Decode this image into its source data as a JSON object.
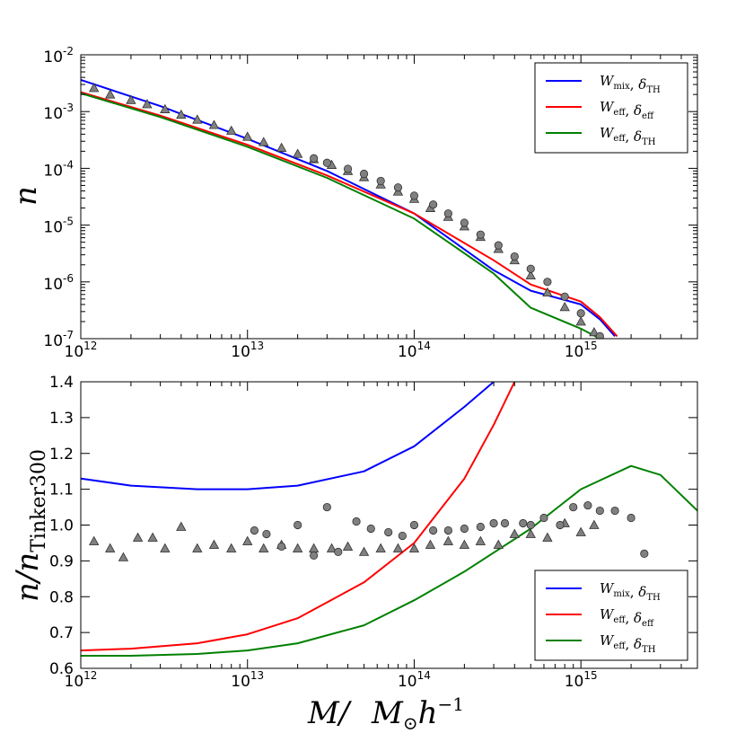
{
  "chart_data": [
    {
      "type": "line",
      "panel": "top",
      "ylabel": "n",
      "xscale": "log",
      "yscale": "log",
      "xlim": [
        1000000000000.0,
        5000000000000000.0
      ],
      "ylim": [
        1e-07,
        0.01
      ],
      "xtick_labels": [
        {
          "base": "10",
          "exp": "12"
        },
        {
          "base": "10",
          "exp": "13"
        },
        {
          "base": "10",
          "exp": "14"
        },
        {
          "base": "10",
          "exp": "15"
        }
      ],
      "ytick_labels": [
        {
          "base": "10",
          "exp": "-7"
        },
        {
          "base": "10",
          "exp": "-6"
        },
        {
          "base": "10",
          "exp": "-5"
        },
        {
          "base": "10",
          "exp": "-4"
        },
        {
          "base": "10",
          "exp": "-3"
        },
        {
          "base": "10",
          "exp": "-2"
        }
      ],
      "legend_position": "top-right",
      "series": [
        {
          "name": "W_mix, δ_TH",
          "color": "#0000ff",
          "x": [
            1000000000000.0,
            3000000000000.0,
            10000000000000.0,
            30000000000000.0,
            100000000000000.0,
            300000000000000.0,
            500000000000000.0,
            1000000000000000.0,
            1300000000000000.0,
            1600000000000000.0
          ],
          "y": [
            0.0036,
            0.00125,
            0.00033,
            9e-05,
            1.6e-05,
            1.6e-06,
            7e-07,
            4e-07,
            2.2e-07,
            1.1e-07
          ]
        },
        {
          "name": "W_eff, δ_eff",
          "color": "#ff0000",
          "x": [
            1000000000000.0,
            3000000000000.0,
            10000000000000.0,
            30000000000000.0,
            100000000000000.0,
            300000000000000.0,
            500000000000000.0,
            1000000000000000.0,
            1300000000000000.0,
            1650000000000000.0
          ],
          "y": [
            0.0022,
            0.00085,
            0.00026,
            7.5e-05,
            1.6e-05,
            2.4e-06,
            9e-07,
            4.5e-07,
            2.4e-07,
            1.1e-07
          ]
        },
        {
          "name": "W_eff, δ_TH",
          "color": "#008000",
          "x": [
            1000000000000.0,
            3000000000000.0,
            10000000000000.0,
            30000000000000.0,
            100000000000000.0,
            300000000000000.0,
            500000000000000.0,
            1000000000000000.0,
            1300000000000000.0
          ],
          "y": [
            0.0021,
            0.0008,
            0.00024,
            6.8e-05,
            1.3e-05,
            1.4e-06,
            3.5e-07,
            1.5e-07,
            1e-07
          ]
        }
      ],
      "markers_triangles": {
        "x": [
          1200000000000.0,
          1500000000000.0,
          2000000000000.0,
          2500000000000.0,
          3200000000000.0,
          4000000000000.0,
          5000000000000.0,
          6300000000000.0,
          8000000000000.0,
          10000000000000.0,
          12500000000000.0,
          16000000000000.0,
          20000000000000.0,
          25000000000000.0,
          32000000000000.0,
          40000000000000.0,
          50000000000000.0,
          63000000000000.0,
          80000000000000.0,
          100000000000000.0,
          125000000000000.0,
          160000000000000.0,
          200000000000000.0,
          250000000000000.0,
          320000000000000.0,
          400000000000000.0,
          500000000000000.0,
          630000000000000.0,
          800000000000000.0,
          1000000000000000.0,
          1200000000000000.0
        ],
        "y": [
          0.0026,
          0.002,
          0.0016,
          0.00135,
          0.0011,
          0.00088,
          0.00072,
          0.00058,
          0.00046,
          0.00036,
          0.00029,
          0.00023,
          0.00018,
          0.000145,
          0.000115,
          9e-05,
          7e-05,
          5.2e-05,
          3.9e-05,
          2.9e-05,
          2e-05,
          1.4e-05,
          9.5e-06,
          6.2e-06,
          3.8e-06,
          2.4e-06,
          1.3e-06,
          6.5e-07,
          3.6e-07,
          2e-07,
          1.3e-07
        ]
      },
      "markers_circles": {
        "x": [
          25000000000000.0,
          30000000000000.0,
          40000000000000.0,
          50000000000000.0,
          63000000000000.0,
          80000000000000.0,
          100000000000000.0,
          130000000000000.0,
          160000000000000.0,
          200000000000000.0,
          250000000000000.0,
          320000000000000.0,
          400000000000000.0,
          500000000000000.0,
          630000000000000.0,
          800000000000000.0,
          1000000000000000.0,
          1300000000000000.0
        ],
        "y": [
          0.00015,
          0.000125,
          9.8e-05,
          8e-05,
          6e-05,
          4.6e-05,
          3.3e-05,
          2.3e-05,
          1.6e-05,
          1.1e-05,
          6.8e-06,
          4.4e-06,
          2.8e-06,
          1.7e-06,
          1e-06,
          5.5e-07,
          2.8e-07,
          1.1e-07
        ]
      }
    },
    {
      "type": "line",
      "panel": "bottom",
      "xlabel": "M/   M_⊙h^{-1}",
      "ylabel": "n/n_Tinker300",
      "xscale": "log",
      "yscale": "linear",
      "xlim": [
        1000000000000.0,
        5000000000000000.0
      ],
      "ylim": [
        0.6,
        1.4
      ],
      "yticks": [
        0.6,
        0.7,
        0.8,
        0.9,
        1.0,
        1.1,
        1.2,
        1.3,
        1.4
      ],
      "ytick_labels": [
        "0.6",
        "0.7",
        "0.8",
        "0.9",
        "1.0",
        "1.1",
        "1.2",
        "1.3",
        "1.4"
      ],
      "xtick_labels": [
        {
          "base": "10",
          "exp": "12"
        },
        {
          "base": "10",
          "exp": "13"
        },
        {
          "base": "10",
          "exp": "14"
        },
        {
          "base": "10",
          "exp": "15"
        }
      ],
      "legend_position": "bottom-right",
      "series": [
        {
          "name": "W_mix, δ_TH",
          "color": "#0000ff",
          "x": [
            1000000000000.0,
            2000000000000.0,
            5000000000000.0,
            10000000000000.0,
            20000000000000.0,
            50000000000000.0,
            100000000000000.0,
            200000000000000.0,
            300000000000000.0
          ],
          "y": [
            1.13,
            1.11,
            1.1,
            1.1,
            1.11,
            1.15,
            1.22,
            1.33,
            1.4
          ]
        },
        {
          "name": "W_eff, δ_eff",
          "color": "#ff0000",
          "x": [
            1000000000000.0,
            2000000000000.0,
            5000000000000.0,
            10000000000000.0,
            20000000000000.0,
            50000000000000.0,
            100000000000000.0,
            200000000000000.0,
            300000000000000.0,
            400000000000000.0
          ],
          "y": [
            0.65,
            0.655,
            0.67,
            0.695,
            0.74,
            0.84,
            0.95,
            1.13,
            1.28,
            1.4
          ]
        },
        {
          "name": "W_eff, δ_TH",
          "color": "#008000",
          "x": [
            1000000000000.0,
            2000000000000.0,
            5000000000000.0,
            10000000000000.0,
            20000000000000.0,
            50000000000000.0,
            100000000000000.0,
            200000000000000.0,
            500000000000000.0,
            1000000000000000.0,
            2000000000000000.0,
            3000000000000000.0,
            5000000000000000.0
          ],
          "y": [
            0.635,
            0.635,
            0.64,
            0.65,
            0.67,
            0.72,
            0.79,
            0.87,
            0.99,
            1.1,
            1.165,
            1.14,
            1.04
          ]
        }
      ],
      "markers_triangles": {
        "x": [
          1200000000000.0,
          1500000000000.0,
          1800000000000.0,
          2200000000000.0,
          2700000000000.0,
          3200000000000.0,
          4000000000000.0,
          5000000000000.0,
          6300000000000.0,
          8000000000000.0,
          10000000000000.0,
          12500000000000.0,
          16000000000000.0,
          20000000000000.0,
          25000000000000.0,
          32000000000000.0,
          40000000000000.0,
          50000000000000.0,
          63000000000000.0,
          80000000000000.0,
          100000000000000.0,
          125000000000000.0,
          160000000000000.0,
          200000000000000.0,
          250000000000000.0,
          320000000000000.0,
          400000000000000.0,
          500000000000000.0,
          630000000000000.0,
          800000000000000.0,
          1000000000000000.0,
          1200000000000000.0
        ],
        "y": [
          0.955,
          0.935,
          0.91,
          0.965,
          0.965,
          0.935,
          0.995,
          0.935,
          0.945,
          0.935,
          0.955,
          0.935,
          0.945,
          0.935,
          0.935,
          0.935,
          0.94,
          0.925,
          0.935,
          0.935,
          0.935,
          0.945,
          0.955,
          0.945,
          0.955,
          0.945,
          0.975,
          0.975,
          0.965,
          1.005,
          0.98,
          1.0
        ]
      },
      "markers_circles": {
        "x": [
          11000000000000.0,
          13000000000000.0,
          16000000000000.0,
          20000000000000.0,
          25000000000000.0,
          30000000000000.0,
          35000000000000.0,
          45000000000000.0,
          55000000000000.0,
          70000000000000.0,
          85000000000000.0,
          100000000000000.0,
          130000000000000.0,
          160000000000000.0,
          200000000000000.0,
          250000000000000.0,
          300000000000000.0,
          350000000000000.0,
          450000000000000.0,
          500000000000000.0,
          600000000000000.0,
          750000000000000.0,
          900000000000000.0,
          1100000000000000.0,
          1300000000000000.0,
          1600000000000000.0,
          2000000000000000.0,
          2400000000000000.0
        ],
        "y": [
          0.985,
          0.975,
          0.94,
          1.0,
          0.915,
          1.05,
          0.925,
          1.01,
          0.99,
          0.98,
          0.97,
          1.0,
          0.985,
          0.985,
          0.99,
          0.995,
          1.005,
          1.005,
          1.005,
          1.0,
          1.02,
          1.0,
          1.05,
          1.055,
          1.04,
          1.04,
          1.02,
          0.92
        ]
      }
    }
  ]
}
